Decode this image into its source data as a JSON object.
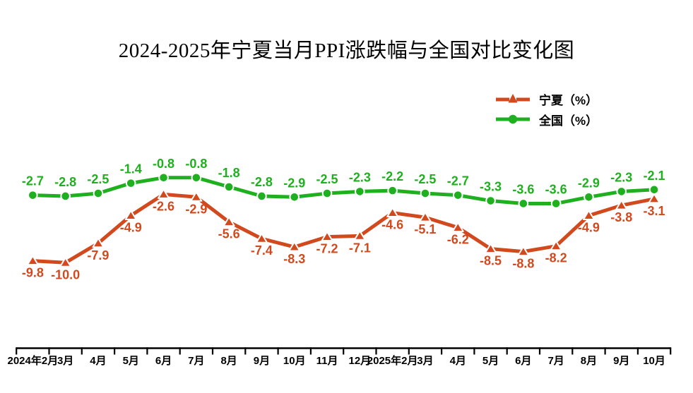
{
  "title": "2024-2025年宁夏当月PPI涨跌幅与全国对比变化图",
  "legend": [
    {
      "label": "宁夏（%）",
      "series_id": "ningxia"
    },
    {
      "label": "全国（%）",
      "series_id": "quanguo"
    }
  ],
  "colors": {
    "ningxia": "#D2491E",
    "quanguo": "#1EB01E",
    "axis": "#000000",
    "background": "#FFFFFF"
  },
  "chart_data": {
    "type": "line",
    "title": "2024-2025年宁夏当月PPI涨跌幅与全国对比变化图",
    "categories": [
      "2024年2月",
      "3月",
      "4月",
      "5月",
      "6月",
      "7月",
      "8月",
      "9月",
      "10月",
      "11月",
      "12月",
      "2025年2月",
      "3月",
      "4月",
      "5月",
      "6月",
      "7月",
      "8月",
      "9月",
      "10月"
    ],
    "series": [
      {
        "id": "ningxia",
        "name": "宁夏（%）",
        "color": "#D2491E",
        "marker": "triangle",
        "label_position": "below",
        "values": [
          -9.8,
          -10.0,
          -7.9,
          -4.9,
          -2.6,
          -2.9,
          -5.6,
          -7.4,
          -8.3,
          -7.2,
          -7.1,
          -4.6,
          -5.1,
          -6.2,
          -8.5,
          -8.8,
          -8.2,
          -4.9,
          -3.8,
          -3.1
        ],
        "labels": [
          "-9.8",
          "-10.0",
          "-7.9",
          "-4.9",
          "-2.6",
          "-2.9",
          "-5.6",
          "-7.4",
          "-8.3",
          "-7.2",
          "-7.1",
          "-4.6",
          "-5.1",
          "-6.2",
          "-8.5",
          "-8.8",
          "-8.2",
          "-4.9",
          "-3.8",
          "-3.1"
        ]
      },
      {
        "id": "quanguo",
        "name": "全国（%）",
        "color": "#1EB01E",
        "marker": "circle",
        "label_position": "above",
        "values": [
          -2.7,
          -2.8,
          -2.5,
          -1.4,
          -0.8,
          -0.8,
          -1.8,
          -2.8,
          -2.9,
          -2.5,
          -2.3,
          -2.2,
          -2.5,
          -2.7,
          -3.3,
          -3.6,
          -3.6,
          -2.9,
          -2.3,
          -2.1
        ],
        "labels": [
          "-2.7",
          "-2.8",
          "-2.5",
          "-1.4",
          "-0.8",
          "-0.8",
          "-1.8",
          "-2.8",
          "-2.9",
          "-2.5",
          "-2.3",
          "-2.2",
          "-2.5",
          "-2.7",
          "-3.3",
          "-3.6",
          "-3.6",
          "-2.9",
          "-2.3",
          "-2.1"
        ]
      }
    ],
    "xlabel": "",
    "ylabel": "",
    "ylim": [
      -12,
      0
    ],
    "grid": false,
    "y_axis_visible": false,
    "legend_position": "top-right"
  }
}
